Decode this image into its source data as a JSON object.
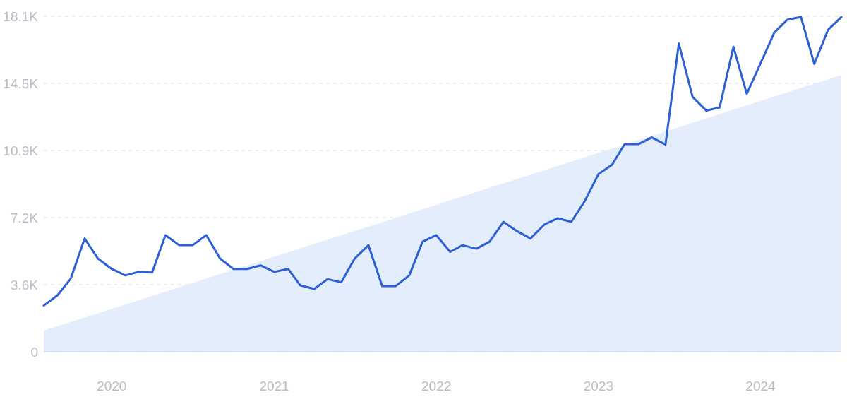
{
  "chart_data": {
    "type": "line",
    "x": [
      "2019-08",
      "2019-09",
      "2019-10",
      "2019-11",
      "2019-12",
      "2020-01",
      "2020-02",
      "2020-03",
      "2020-04",
      "2020-05",
      "2020-06",
      "2020-07",
      "2020-08",
      "2020-09",
      "2020-10",
      "2020-11",
      "2020-12",
      "2021-01",
      "2021-02",
      "2021-03",
      "2021-04",
      "2021-05",
      "2021-06",
      "2021-07",
      "2021-08",
      "2021-09",
      "2021-10",
      "2021-11",
      "2021-12",
      "2022-01",
      "2022-02",
      "2022-03",
      "2022-04",
      "2022-05",
      "2022-06",
      "2022-07",
      "2022-08",
      "2022-09",
      "2022-10",
      "2022-11",
      "2022-12",
      "2023-01",
      "2023-02",
      "2023-03",
      "2023-04",
      "2023-05",
      "2023-06",
      "2023-07",
      "2023-08",
      "2023-09",
      "2023-10",
      "2023-11",
      "2023-12",
      "2024-01",
      "2024-02",
      "2024-03",
      "2024-04",
      "2024-05",
      "2024-06",
      "2024-07"
    ],
    "series": [
      {
        "type": "area",
        "x": [
          "2019-08",
          "2024-07"
        ],
        "values": [
          1140,
          14930
        ],
        "color": "#e3edfb"
      },
      {
        "type": "line",
        "color": "#2d5fd6",
        "values": [
          2490,
          3050,
          3960,
          6110,
          5030,
          4470,
          4120,
          4310,
          4280,
          6290,
          5750,
          5750,
          6290,
          5030,
          4470,
          4470,
          4660,
          4310,
          4470,
          3580,
          3390,
          3920,
          3750,
          5030,
          5750,
          3540,
          3540,
          4120,
          5940,
          6290,
          5390,
          5750,
          5560,
          5940,
          7010,
          6520,
          6110,
          6860,
          7200,
          7010,
          8120,
          9580,
          10100,
          11200,
          11200,
          11560,
          11180,
          16630,
          13750,
          13010,
          13180,
          16450,
          13910,
          15560,
          17220,
          17910,
          18060,
          15530,
          17370,
          18060
        ]
      }
    ],
    "xlim": [
      "2019-08",
      "2024-07"
    ],
    "xticks": [
      "2020",
      "2021",
      "2022",
      "2023",
      "2024"
    ],
    "ylim": [
      0,
      18100
    ],
    "yticks": [
      0,
      {
        "value": 3620,
        "label": "3.6K"
      },
      {
        "value": 7240,
        "label": "7.2K"
      },
      {
        "value": 10860,
        "label": "10.9K"
      },
      {
        "value": 14480,
        "label": "14.5K"
      },
      {
        "value": 18100,
        "label": "18.1K"
      }
    ],
    "grid": "y",
    "line_style": "solid",
    "marker": "none"
  }
}
